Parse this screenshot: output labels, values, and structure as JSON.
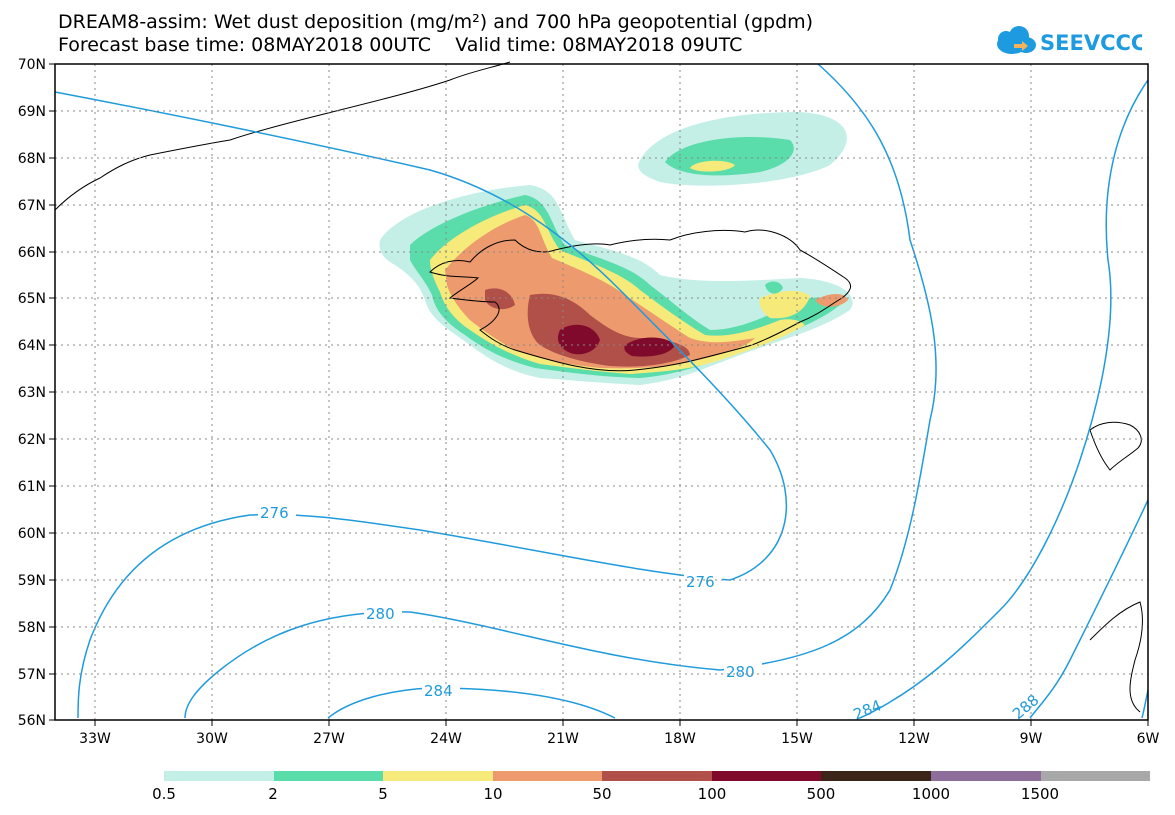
{
  "header": {
    "title_line1": "DREAM8-assim: Wet dust deposition (mg/m²) and 700 hPa geopotential (gpdm)",
    "title_line2": "Forecast base time: 08MAY2018 00UTC    Valid time: 08MAY2018 09UTC"
  },
  "logo": {
    "text": "SEEVCCC",
    "icon": "cloud-icon",
    "color": "#1e9be0"
  },
  "map": {
    "lat_labels": [
      "70N",
      "69N",
      "68N",
      "67N",
      "66N",
      "65N",
      "64N",
      "63N",
      "62N",
      "61N",
      "60N",
      "59N",
      "58N",
      "57N",
      "56N"
    ],
    "lon_labels": [
      "33W",
      "30W",
      "27W",
      "24W",
      "21W",
      "18W",
      "15W",
      "12W",
      "9W",
      "6W"
    ],
    "contour_labels": [
      "276",
      "276",
      "280",
      "280",
      "284",
      "284",
      "288"
    ],
    "contour_color": "#1f9bdc"
  },
  "colorbar": {
    "colors": [
      "#c3efe6",
      "#5adcab",
      "#f6eb7a",
      "#ec9a6e",
      "#b05048",
      "#7f0a2c",
      "#3d2418",
      "#8f6d9a",
      "#a8a8a8"
    ],
    "labels": [
      "0.5",
      "2",
      "5",
      "10",
      "50",
      "100",
      "500",
      "1000",
      "1500"
    ]
  }
}
